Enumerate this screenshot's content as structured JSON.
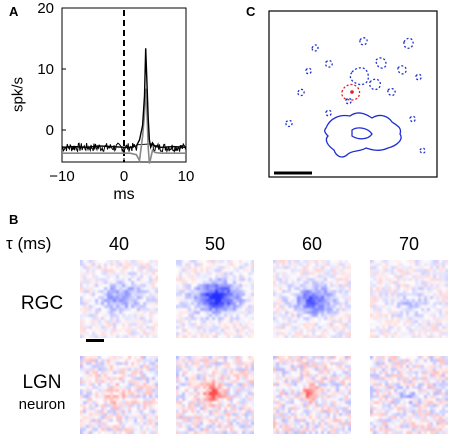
{
  "panel_a": {
    "letter": "A",
    "ylabel": "spk/s",
    "xlabel": "ms",
    "yticks": [
      "0",
      "10",
      "20"
    ],
    "xticks": [
      "−10",
      "0",
      "10"
    ],
    "colors": {
      "black_trace": "#000000",
      "gray_trace": "#888888"
    }
  },
  "panel_b": {
    "letter": "B",
    "tau_label": "τ (ms)",
    "delays": [
      "40",
      "50",
      "60",
      "70"
    ],
    "row_labels": {
      "rgc": "RGC",
      "lgn_line1": "LGN",
      "lgn_line2": "neuron"
    },
    "colors": {
      "on": "#2a3bd6",
      "off": "#e23a3a"
    }
  },
  "panel_c": {
    "letter": "C",
    "colors": {
      "contour_blue": "#1f2fcf",
      "contour_red": "#e01e1e"
    }
  },
  "chart_data": [
    {
      "type": "line",
      "title": "",
      "xlabel": "ms",
      "ylabel": "spk/s",
      "xlim": [
        -10,
        10
      ],
      "ylim": [
        -1,
        20
      ],
      "x": [
        -10,
        -8,
        -6,
        -4,
        -2,
        0,
        1,
        2,
        2.5,
        3,
        3.3,
        3.5,
        3.7,
        3.9,
        4.1,
        4.3,
        4.6,
        5,
        6,
        8,
        10
      ],
      "series": [
        {
          "values": [
            1.0,
            1.1,
            1.0,
            1.2,
            1.1,
            1.0,
            1.0,
            1.2,
            2.0,
            4.0,
            8.0,
            14.5,
            10.0,
            5.0,
            2.0,
            1.0,
            1.6,
            1.1,
            1.0,
            1.1,
            1.0
          ]
        },
        {
          "values": [
            0.2,
            0.2,
            0.2,
            0.2,
            0.2,
            0.2,
            0.2,
            0.0,
            -0.8,
            2.5,
            5.5,
            9.0,
            6.0,
            1.0,
            -1.2,
            -0.5,
            0.6,
            0.3,
            0.2,
            0.2,
            0.2
          ]
        }
      ],
      "grid": false
    }
  ]
}
